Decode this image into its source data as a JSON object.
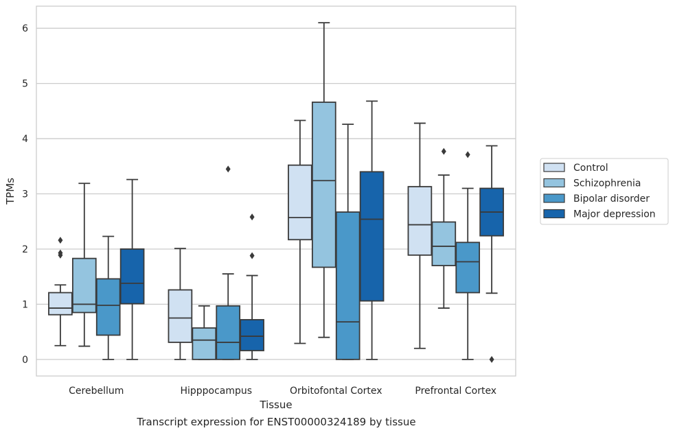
{
  "caption": "Transcript expression for ENST00000324189 by tissue",
  "chart_data": {
    "type": "boxplot",
    "title": "",
    "xlabel": "Tissue",
    "ylabel": "TPMs",
    "ylim": [
      -0.3,
      6.4
    ],
    "yticks": [
      0,
      1,
      2,
      3,
      4,
      5,
      6
    ],
    "grid": "horizontal",
    "legend_position": "right",
    "categories": [
      "Cerebellum",
      "Hipppocampus",
      "Orbitofontal Cortex",
      "Prefrontal Cortex"
    ],
    "series": [
      {
        "name": "Control",
        "color": "#d0e1f2",
        "boxes": [
          {
            "whislo": 0.25,
            "q1": 0.81,
            "med": 0.93,
            "q3": 1.21,
            "whishi": 1.35,
            "fliers": [
              1.89,
              1.93,
              2.16
            ]
          },
          {
            "whislo": 0.0,
            "q1": 0.31,
            "med": 0.75,
            "q3": 1.26,
            "whishi": 2.01,
            "fliers": []
          },
          {
            "whislo": 0.29,
            "q1": 2.17,
            "med": 2.57,
            "q3": 3.52,
            "whishi": 4.33,
            "fliers": []
          },
          {
            "whislo": 0.2,
            "q1": 1.89,
            "med": 2.44,
            "q3": 3.13,
            "whishi": 4.28,
            "fliers": []
          }
        ]
      },
      {
        "name": "Schizophrenia",
        "color": "#94c4df",
        "boxes": [
          {
            "whislo": 0.24,
            "q1": 0.85,
            "med": 1.0,
            "q3": 1.83,
            "whishi": 3.19,
            "fliers": []
          },
          {
            "whislo": 0.0,
            "q1": 0.0,
            "med": 0.35,
            "q3": 0.57,
            "whishi": 0.97,
            "fliers": []
          },
          {
            "whislo": 0.4,
            "q1": 1.67,
            "med": 3.24,
            "q3": 4.66,
            "whishi": 6.1,
            "fliers": []
          },
          {
            "whislo": 0.93,
            "q1": 1.7,
            "med": 2.05,
            "q3": 2.49,
            "whishi": 3.34,
            "fliers": [
              3.77
            ]
          }
        ]
      },
      {
        "name": "Bipolar disorder",
        "color": "#4a98c9",
        "boxes": [
          {
            "whislo": 0.0,
            "q1": 0.44,
            "med": 0.98,
            "q3": 1.46,
            "whishi": 2.23,
            "fliers": []
          },
          {
            "whislo": 0.0,
            "q1": 0.0,
            "med": 0.31,
            "q3": 0.97,
            "whishi": 1.55,
            "fliers": [
              3.45
            ]
          },
          {
            "whislo": 0.0,
            "q1": 0.0,
            "med": 0.68,
            "q3": 2.67,
            "whishi": 4.26,
            "fliers": []
          },
          {
            "whislo": 0.0,
            "q1": 1.21,
            "med": 1.77,
            "q3": 2.12,
            "whishi": 3.1,
            "fliers": [
              3.71
            ]
          }
        ]
      },
      {
        "name": "Major depression",
        "color": "#1764ab",
        "boxes": [
          {
            "whislo": 0.0,
            "q1": 1.01,
            "med": 1.38,
            "q3": 2.0,
            "whishi": 3.26,
            "fliers": []
          },
          {
            "whislo": 0.0,
            "q1": 0.16,
            "med": 0.42,
            "q3": 0.72,
            "whishi": 1.52,
            "fliers": [
              1.88,
              2.58
            ]
          },
          {
            "whislo": 0.0,
            "q1": 1.06,
            "med": 2.54,
            "q3": 3.4,
            "whishi": 4.68,
            "fliers": []
          },
          {
            "whislo": 1.2,
            "q1": 2.24,
            "med": 2.67,
            "q3": 3.1,
            "whishi": 3.87,
            "fliers": [
              0.0
            ]
          }
        ]
      }
    ]
  }
}
